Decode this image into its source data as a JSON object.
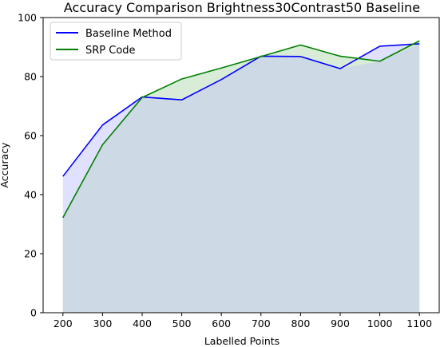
{
  "chart_data": {
    "type": "area",
    "title": "Accuracy Comparison Brightness30Contrast50 Baseline",
    "xlabel": "Labelled Points",
    "ylabel": "Accuracy",
    "x": [
      200,
      300,
      400,
      500,
      600,
      700,
      800,
      900,
      1000,
      1100
    ],
    "xlim": [
      150,
      1150
    ],
    "ylim": [
      0,
      100
    ],
    "yticks": [
      0,
      20,
      40,
      60,
      80,
      100
    ],
    "grid": false,
    "legend_position": "upper left",
    "series": [
      {
        "name": "Baseline Method",
        "color": "#0000ff",
        "fill": "#e0e0ff",
        "values": [
          46.2,
          63.6,
          73.1,
          72.1,
          79.0,
          86.9,
          86.8,
          82.7,
          90.3,
          91.1
        ]
      },
      {
        "name": "SRP Code",
        "color": "#008000",
        "fill": "#d8ecd8",
        "values": [
          32.2,
          56.9,
          72.9,
          79.2,
          82.9,
          86.8,
          90.7,
          86.9,
          85.2,
          92.1
        ]
      }
    ],
    "overlap_fill": "#cdd9e5"
  }
}
